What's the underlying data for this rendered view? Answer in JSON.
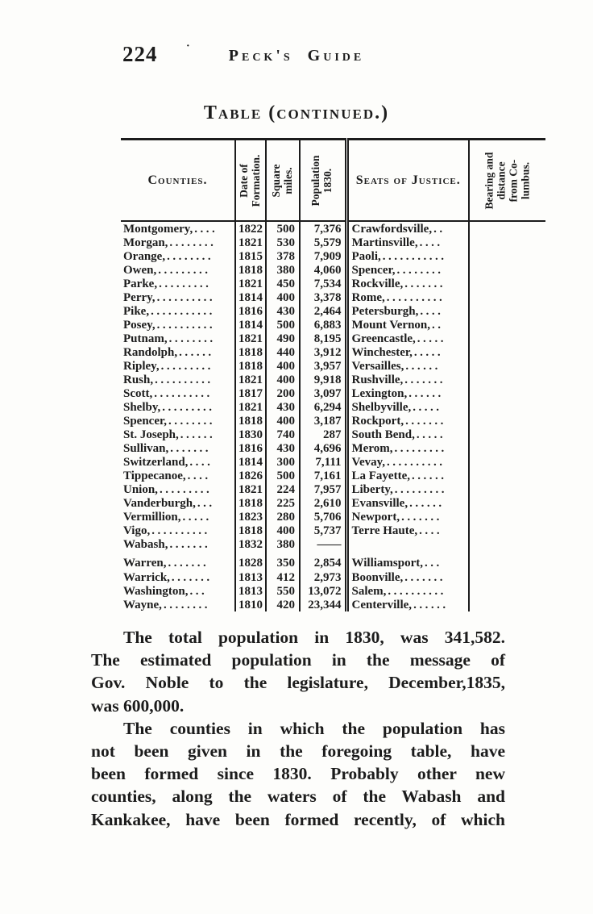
{
  "page": {
    "number": "224",
    "separator_dot": "·",
    "running_title": "Peck's Guide"
  },
  "table": {
    "title": "Table (continued.)",
    "headers": {
      "counties": "Counties.",
      "date_of_formation": "Date of\nFormation.",
      "square_miles": "Square\nmiles.",
      "population_1830": "Population\n1830.",
      "seats_of_justice": "Seats of Justice.",
      "bearing": "Bearing and\ndistance\nfrom Co-\nlumbus."
    },
    "rows": [
      {
        "county": "Montgomery,",
        "county_dots": "....",
        "date": "1822",
        "sqmi": "500",
        "pop": "7,376",
        "seat": "Crawfordsville,",
        "seat_dots": ".."
      },
      {
        "county": "Morgan,",
        "county_dots": "........",
        "date": "1821",
        "sqmi": "530",
        "pop": "5,579",
        "seat": "Martinsville,",
        "seat_dots": "...."
      },
      {
        "county": "Orange,",
        "county_dots": "........",
        "date": "1815",
        "sqmi": "378",
        "pop": "7,909",
        "seat": "Paoli,",
        "seat_dots": "..........."
      },
      {
        "county": "Owen,",
        "county_dots": ".........",
        "date": "1818",
        "sqmi": "380",
        "pop": "4,060",
        "seat": "Spencer,",
        "seat_dots": "........"
      },
      {
        "county": "Parke,",
        "county_dots": ".........",
        "date": "1821",
        "sqmi": "450",
        "pop": "7,534",
        "seat": "Rockville,",
        "seat_dots": "......."
      },
      {
        "county": "Perry,",
        "county_dots": "..........",
        "date": "1814",
        "sqmi": "400",
        "pop": "3,378",
        "seat": "Rome,",
        "seat_dots": ".........."
      },
      {
        "county": "Pike,",
        "county_dots": "...........",
        "date": "1816",
        "sqmi": "430",
        "pop": "2,464",
        "seat": "Petersburgh,",
        "seat_dots": "...."
      },
      {
        "county": "Posey,",
        "county_dots": "..........",
        "date": "1814",
        "sqmi": "500",
        "pop": "6,883",
        "seat": "Mount Vernon,",
        "seat_dots": ".."
      },
      {
        "county": "Putnam,",
        "county_dots": "........",
        "date": "1821",
        "sqmi": "490",
        "pop": "8,195",
        "seat": "Greencastle,",
        "seat_dots": "....."
      },
      {
        "county": "Randolph,",
        "county_dots": "......",
        "date": "1818",
        "sqmi": "440",
        "pop": "3,912",
        "seat": "Winchester,",
        "seat_dots": "....."
      },
      {
        "county": "Ripley,",
        "county_dots": ".........",
        "date": "1818",
        "sqmi": "400",
        "pop": "3,957",
        "seat": "Versailles,",
        "seat_dots": "......"
      },
      {
        "county": "Rush,",
        "county_dots": "..........",
        "date": "1821",
        "sqmi": "400",
        "pop": "9,918",
        "seat": "Rushville,",
        "seat_dots": "......."
      },
      {
        "county": "Scott,",
        "county_dots": "..........",
        "date": "1817",
        "sqmi": "200",
        "pop": "3,097",
        "seat": "Lexington,",
        "seat_dots": "......"
      },
      {
        "county": "Shelby,",
        "county_dots": ".........",
        "date": "1821",
        "sqmi": "430",
        "pop": "6,294",
        "seat": "Shelbyville,",
        "seat_dots": "....."
      },
      {
        "county": "Spencer,",
        "county_dots": "........",
        "date": "1818",
        "sqmi": "400",
        "pop": "3,187",
        "seat": "Rockport,",
        "seat_dots": "......."
      },
      {
        "county": "St. Joseph,",
        "county_dots": "......",
        "date": "1830",
        "sqmi": "740",
        "pop": "287",
        "seat": "South Bend,",
        "seat_dots": "....."
      },
      {
        "county": "Sullivan,",
        "county_dots": ".......",
        "date": "1816",
        "sqmi": "430",
        "pop": "4,696",
        "seat": "Merom,",
        "seat_dots": "........."
      },
      {
        "county": "Switzerland,",
        "county_dots": "....",
        "date": "1814",
        "sqmi": "300",
        "pop": "7,111",
        "seat": "Vevay,",
        "seat_dots": ".........."
      },
      {
        "county": "Tippecanoe,",
        "county_dots": "....",
        "date": "1826",
        "sqmi": "500",
        "pop": "7,161",
        "seat": "La Fayette,",
        "seat_dots": "......"
      },
      {
        "county": "Union,",
        "county_dots": ".........",
        "date": "1821",
        "sqmi": "224",
        "pop": "7,957",
        "seat": "Liberty,",
        "seat_dots": "........."
      },
      {
        "county": "Vanderburgh,",
        "county_dots": "...",
        "date": "1818",
        "sqmi": "225",
        "pop": "2,610",
        "seat": "Evansville,",
        "seat_dots": "......"
      },
      {
        "county": "Vermillion,",
        "county_dots": ".....",
        "date": "1823",
        "sqmi": "280",
        "pop": "5,706",
        "seat": "Newport,",
        "seat_dots": "......."
      },
      {
        "county": "Vigo,",
        "county_dots": "..........",
        "date": "1818",
        "sqmi": "400",
        "pop": "5,737",
        "seat": "Terre Haute,",
        "seat_dots": "...."
      },
      {
        "county": "Wabash,",
        "county_dots": ".......",
        "date": "1832",
        "sqmi": "380",
        "pop": "——",
        "seat": "",
        "seat_dots": ""
      },
      {
        "county": "Warren,",
        "county_dots": ".......",
        "date": "1828",
        "sqmi": "350",
        "pop": "2,854",
        "seat": "Williamsport,",
        "seat_dots": "...",
        "gap": true
      },
      {
        "county": "Warrick,",
        "county_dots": ".......",
        "date": "1813",
        "sqmi": "412",
        "pop": "2,973",
        "seat": "Boonville,",
        "seat_dots": "......."
      },
      {
        "county": "Washington,",
        "county_dots": "...",
        "date": "1813",
        "sqmi": "550",
        "pop": "13,072",
        "seat": "Salem,",
        "seat_dots": ".........."
      },
      {
        "county": "Wayne,",
        "county_dots": "........",
        "date": "1810",
        "sqmi": "420",
        "pop": "23,344",
        "seat": "Centerville,",
        "seat_dots": "......"
      }
    ]
  },
  "body": {
    "lines": [
      {
        "text": "The total population in 1830, was 341,582.",
        "indent": true,
        "justify": true
      },
      {
        "text": "The estimated population in the message of",
        "indent": false,
        "justify": true
      },
      {
        "text": "Gov. Noble to the legislature, December,1835,",
        "indent": false,
        "justify": true
      },
      {
        "text": "was 600,000.",
        "indent": false,
        "justify": false
      },
      {
        "text": "The counties in which the population has",
        "indent": true,
        "justify": true
      },
      {
        "text": "not been given in the foregoing table, have",
        "indent": false,
        "justify": true
      },
      {
        "text": "been formed since 1830.  Probably other new",
        "indent": false,
        "justify": true
      },
      {
        "text": "counties, along the waters of the Wabash and",
        "indent": false,
        "justify": true
      },
      {
        "text": "Kankakee, have been formed recently, of which",
        "indent": false,
        "justify": true
      }
    ]
  }
}
